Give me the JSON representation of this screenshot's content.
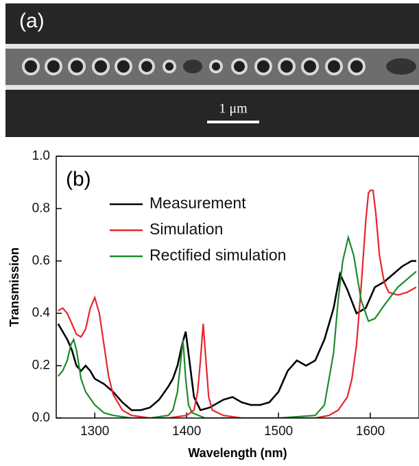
{
  "image_panel": {
    "label": "(a)",
    "scale_bar": "1 μm"
  },
  "chart_data": {
    "type": "line",
    "panel_label": "(b)",
    "x_label": "Wavelength (nm)",
    "y_label": "Transmission",
    "xlim": [
      1258,
      1653
    ],
    "ylim": [
      0,
      1
    ],
    "xticks": [
      1300,
      1400,
      1500,
      1600
    ],
    "yticks": [
      {
        "value": 0,
        "label": "0.0"
      },
      0.2,
      0.4,
      0.6,
      0.8,
      {
        "value": 1,
        "label": "1.0"
      }
    ],
    "legend": "upper left",
    "series": [
      {
        "name": "Measurement",
        "color": "#000000",
        "x": [
          1260,
          1265,
          1270,
          1275,
          1280,
          1285,
          1290,
          1295,
          1300,
          1310,
          1320,
          1330,
          1340,
          1350,
          1360,
          1370,
          1380,
          1385,
          1390,
          1395,
          1399,
          1403,
          1408,
          1415,
          1425,
          1440,
          1450,
          1460,
          1470,
          1480,
          1490,
          1500,
          1510,
          1520,
          1530,
          1540,
          1550,
          1560,
          1567,
          1575,
          1585,
          1595,
          1605,
          1615,
          1625,
          1635,
          1645,
          1650
        ],
        "values": [
          0.36,
          0.33,
          0.3,
          0.26,
          0.2,
          0.18,
          0.2,
          0.18,
          0.15,
          0.13,
          0.1,
          0.06,
          0.03,
          0.03,
          0.04,
          0.07,
          0.12,
          0.15,
          0.2,
          0.28,
          0.33,
          0.22,
          0.08,
          0.03,
          0.04,
          0.07,
          0.08,
          0.06,
          0.05,
          0.05,
          0.06,
          0.1,
          0.18,
          0.22,
          0.2,
          0.22,
          0.3,
          0.42,
          0.55,
          0.49,
          0.4,
          0.42,
          0.5,
          0.52,
          0.55,
          0.58,
          0.6,
          0.6
        ]
      },
      {
        "name": "Simulation",
        "color": "#e8242a",
        "x": [
          1260,
          1265,
          1270,
          1275,
          1280,
          1285,
          1290,
          1295,
          1300,
          1305,
          1310,
          1315,
          1320,
          1330,
          1340,
          1360,
          1380,
          1400,
          1408,
          1412,
          1415,
          1418,
          1421,
          1424,
          1428,
          1440,
          1460,
          1500,
          1540,
          1555,
          1565,
          1575,
          1580,
          1585,
          1590,
          1595,
          1598,
          1600,
          1603,
          1606,
          1610,
          1615,
          1620,
          1630,
          1640,
          1650
        ],
        "values": [
          0.41,
          0.42,
          0.4,
          0.36,
          0.32,
          0.31,
          0.34,
          0.42,
          0.46,
          0.4,
          0.28,
          0.16,
          0.09,
          0.03,
          0.01,
          0.0,
          0.0,
          0.01,
          0.03,
          0.1,
          0.22,
          0.36,
          0.22,
          0.08,
          0.03,
          0.01,
          0.0,
          0.0,
          0.0,
          0.01,
          0.03,
          0.08,
          0.15,
          0.28,
          0.5,
          0.75,
          0.86,
          0.87,
          0.87,
          0.78,
          0.62,
          0.52,
          0.48,
          0.47,
          0.48,
          0.5
        ]
      },
      {
        "name": "Rectified simulation",
        "color": "#1a8a2a",
        "x": [
          1260,
          1265,
          1270,
          1274,
          1277,
          1280,
          1285,
          1290,
          1300,
          1310,
          1320,
          1340,
          1360,
          1380,
          1385,
          1390,
          1393,
          1396,
          1399,
          1402,
          1406,
          1420,
          1450,
          1500,
          1540,
          1550,
          1560,
          1565,
          1570,
          1576,
          1582,
          1590,
          1598,
          1605,
          1615,
          1630,
          1650
        ],
        "values": [
          0.16,
          0.18,
          0.22,
          0.28,
          0.3,
          0.26,
          0.15,
          0.1,
          0.05,
          0.02,
          0.01,
          0.0,
          0.0,
          0.01,
          0.03,
          0.1,
          0.2,
          0.3,
          0.15,
          0.05,
          0.02,
          0.0,
          0.0,
          0.0,
          0.01,
          0.05,
          0.25,
          0.45,
          0.6,
          0.69,
          0.62,
          0.45,
          0.37,
          0.38,
          0.43,
          0.5,
          0.56
        ]
      }
    ]
  }
}
